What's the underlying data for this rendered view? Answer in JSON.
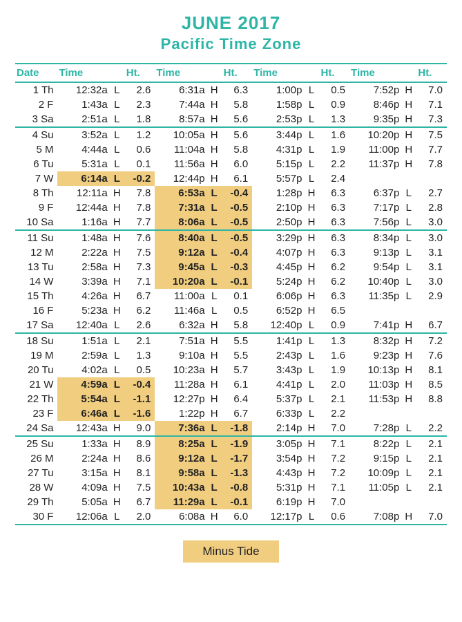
{
  "title": {
    "month": "JUNE 2017",
    "tz": "Pacific Time Zone"
  },
  "columns": [
    "Date",
    "Time",
    "",
    "Ht.",
    "Time",
    "",
    "Ht.",
    "Time",
    "",
    "Ht.",
    "Time",
    "",
    "Ht."
  ],
  "legend": "Minus Tide",
  "colors": {
    "accent": "#2db5a5",
    "highlight_bg": "#f1cd80",
    "text": "#222222",
    "background": "#ffffff"
  },
  "rows": [
    {
      "d": "1 Th",
      "c": [
        [
          "12:32a",
          "L",
          "2.6",
          0
        ],
        [
          "6:31a",
          "H",
          "6.3",
          0
        ],
        [
          "1:00p",
          "L",
          "0.5",
          0
        ],
        [
          "7:52p",
          "H",
          "7.0",
          0
        ]
      ]
    },
    {
      "d": "2 F",
      "c": [
        [
          "1:43a",
          "L",
          "2.3",
          0
        ],
        [
          "7:44a",
          "H",
          "5.8",
          0
        ],
        [
          "1:58p",
          "L",
          "0.9",
          0
        ],
        [
          "8:46p",
          "H",
          "7.1",
          0
        ]
      ]
    },
    {
      "d": "3 Sa",
      "sep": 1,
      "c": [
        [
          "2:51a",
          "L",
          "1.8",
          0
        ],
        [
          "8:57a",
          "H",
          "5.6",
          0
        ],
        [
          "2:53p",
          "L",
          "1.3",
          0
        ],
        [
          "9:35p",
          "H",
          "7.3",
          0
        ]
      ]
    },
    {
      "d": "4 Su",
      "c": [
        [
          "3:52a",
          "L",
          "1.2",
          0
        ],
        [
          "10:05a",
          "H",
          "5.6",
          0
        ],
        [
          "3:44p",
          "L",
          "1.6",
          0
        ],
        [
          "10:20p",
          "H",
          "7.5",
          0
        ]
      ]
    },
    {
      "d": "5 M",
      "c": [
        [
          "4:44a",
          "L",
          "0.6",
          0
        ],
        [
          "11:04a",
          "H",
          "5.8",
          0
        ],
        [
          "4:31p",
          "L",
          "1.9",
          0
        ],
        [
          "11:00p",
          "H",
          "7.7",
          0
        ]
      ]
    },
    {
      "d": "6 Tu",
      "c": [
        [
          "5:31a",
          "L",
          "0.1",
          0
        ],
        [
          "11:56a",
          "H",
          "6.0",
          0
        ],
        [
          "5:15p",
          "L",
          "2.2",
          0
        ],
        [
          "11:37p",
          "H",
          "7.8",
          0
        ]
      ]
    },
    {
      "d": "7 W",
      "c": [
        [
          "6:14a",
          "L",
          "-0.2",
          1
        ],
        [
          "12:44p",
          "H",
          "6.1",
          0
        ],
        [
          "5:57p",
          "L",
          "2.4",
          0
        ],
        [
          "",
          "",
          "",
          0
        ]
      ]
    },
    {
      "d": "8 Th",
      "c": [
        [
          "12:11a",
          "H",
          "7.8",
          0
        ],
        [
          "6:53a",
          "L",
          "-0.4",
          1
        ],
        [
          "1:28p",
          "H",
          "6.3",
          0
        ],
        [
          "6:37p",
          "L",
          "2.7",
          0
        ]
      ]
    },
    {
      "d": "9 F",
      "c": [
        [
          "12:44a",
          "H",
          "7.8",
          0
        ],
        [
          "7:31a",
          "L",
          "-0.5",
          1
        ],
        [
          "2:10p",
          "H",
          "6.3",
          0
        ],
        [
          "7:17p",
          "L",
          "2.8",
          0
        ]
      ]
    },
    {
      "d": "10 Sa",
      "sep": 1,
      "c": [
        [
          "1:16a",
          "H",
          "7.7",
          0
        ],
        [
          "8:06a",
          "L",
          "-0.5",
          1
        ],
        [
          "2:50p",
          "H",
          "6.3",
          0
        ],
        [
          "7:56p",
          "L",
          "3.0",
          0
        ]
      ]
    },
    {
      "d": "11 Su",
      "c": [
        [
          "1:48a",
          "H",
          "7.6",
          0
        ],
        [
          "8:40a",
          "L",
          "-0.5",
          1
        ],
        [
          "3:29p",
          "H",
          "6.3",
          0
        ],
        [
          "8:34p",
          "L",
          "3.0",
          0
        ]
      ]
    },
    {
      "d": "12 M",
      "c": [
        [
          "2:22a",
          "H",
          "7.5",
          0
        ],
        [
          "9:12a",
          "L",
          "-0.4",
          1
        ],
        [
          "4:07p",
          "H",
          "6.3",
          0
        ],
        [
          "9:13p",
          "L",
          "3.1",
          0
        ]
      ]
    },
    {
      "d": "13 Tu",
      "c": [
        [
          "2:58a",
          "H",
          "7.3",
          0
        ],
        [
          "9:45a",
          "L",
          "-0.3",
          1
        ],
        [
          "4:45p",
          "H",
          "6.2",
          0
        ],
        [
          "9:54p",
          "L",
          "3.1",
          0
        ]
      ]
    },
    {
      "d": "14 W",
      "c": [
        [
          "3:39a",
          "H",
          "7.1",
          0
        ],
        [
          "10:20a",
          "L",
          "-0.1",
          1
        ],
        [
          "5:24p",
          "H",
          "6.2",
          0
        ],
        [
          "10:40p",
          "L",
          "3.0",
          0
        ]
      ]
    },
    {
      "d": "15 Th",
      "c": [
        [
          "4:26a",
          "H",
          "6.7",
          0
        ],
        [
          "11:00a",
          "L",
          "0.1",
          0
        ],
        [
          "6:06p",
          "H",
          "6.3",
          0
        ],
        [
          "11:35p",
          "L",
          "2.9",
          0
        ]
      ]
    },
    {
      "d": "16 F",
      "c": [
        [
          "5:23a",
          "H",
          "6.2",
          0
        ],
        [
          "11:46a",
          "L",
          "0.5",
          0
        ],
        [
          "6:52p",
          "H",
          "6.5",
          0
        ],
        [
          "",
          "",
          "",
          0
        ]
      ]
    },
    {
      "d": "17 Sa",
      "sep": 1,
      "c": [
        [
          "12:40a",
          "L",
          "2.6",
          0
        ],
        [
          "6:32a",
          "H",
          "5.8",
          0
        ],
        [
          "12:40p",
          "L",
          "0.9",
          0
        ],
        [
          "7:41p",
          "H",
          "6.7",
          0
        ]
      ]
    },
    {
      "d": "18 Su",
      "c": [
        [
          "1:51a",
          "L",
          "2.1",
          0
        ],
        [
          "7:51a",
          "H",
          "5.5",
          0
        ],
        [
          "1:41p",
          "L",
          "1.3",
          0
        ],
        [
          "8:32p",
          "H",
          "7.2",
          0
        ]
      ]
    },
    {
      "d": "19 M",
      "c": [
        [
          "2:59a",
          "L",
          "1.3",
          0
        ],
        [
          "9:10a",
          "H",
          "5.5",
          0
        ],
        [
          "2:43p",
          "L",
          "1.6",
          0
        ],
        [
          "9:23p",
          "H",
          "7.6",
          0
        ]
      ]
    },
    {
      "d": "20 Tu",
      "c": [
        [
          "4:02a",
          "L",
          "0.5",
          0
        ],
        [
          "10:23a",
          "H",
          "5.7",
          0
        ],
        [
          "3:43p",
          "L",
          "1.9",
          0
        ],
        [
          "10:13p",
          "H",
          "8.1",
          0
        ]
      ]
    },
    {
      "d": "21 W",
      "c": [
        [
          "4:59a",
          "L",
          "-0.4",
          1
        ],
        [
          "11:28a",
          "H",
          "6.1",
          0
        ],
        [
          "4:41p",
          "L",
          "2.0",
          0
        ],
        [
          "11:03p",
          "H",
          "8.5",
          0
        ]
      ]
    },
    {
      "d": "22 Th",
      "c": [
        [
          "5:54a",
          "L",
          "-1.1",
          1
        ],
        [
          "12:27p",
          "H",
          "6.4",
          0
        ],
        [
          "5:37p",
          "L",
          "2.1",
          0
        ],
        [
          "11:53p",
          "H",
          "8.8",
          0
        ]
      ]
    },
    {
      "d": "23 F",
      "c": [
        [
          "6:46a",
          "L",
          "-1.6",
          1
        ],
        [
          "1:22p",
          "H",
          "6.7",
          0
        ],
        [
          "6:33p",
          "L",
          "2.2",
          0
        ],
        [
          "",
          "",
          "",
          0
        ]
      ]
    },
    {
      "d": "24 Sa",
      "sep": 1,
      "c": [
        [
          "12:43a",
          "H",
          "9.0",
          0
        ],
        [
          "7:36a",
          "L",
          "-1.8",
          1
        ],
        [
          "2:14p",
          "H",
          "7.0",
          0
        ],
        [
          "7:28p",
          "L",
          "2.2",
          0
        ]
      ]
    },
    {
      "d": "25 Su",
      "c": [
        [
          "1:33a",
          "H",
          "8.9",
          0
        ],
        [
          "8:25a",
          "L",
          "-1.9",
          1
        ],
        [
          "3:05p",
          "H",
          "7.1",
          0
        ],
        [
          "8:22p",
          "L",
          "2.1",
          0
        ]
      ]
    },
    {
      "d": "26 M",
      "c": [
        [
          "2:24a",
          "H",
          "8.6",
          0
        ],
        [
          "9:12a",
          "L",
          "-1.7",
          1
        ],
        [
          "3:54p",
          "H",
          "7.2",
          0
        ],
        [
          "9:15p",
          "L",
          "2.1",
          0
        ]
      ]
    },
    {
      "d": "27 Tu",
      "c": [
        [
          "3:15a",
          "H",
          "8.1",
          0
        ],
        [
          "9:58a",
          "L",
          "-1.3",
          1
        ],
        [
          "4:43p",
          "H",
          "7.2",
          0
        ],
        [
          "10:09p",
          "L",
          "2.1",
          0
        ]
      ]
    },
    {
      "d": "28 W",
      "c": [
        [
          "4:09a",
          "H",
          "7.5",
          0
        ],
        [
          "10:43a",
          "L",
          "-0.8",
          1
        ],
        [
          "5:31p",
          "H",
          "7.1",
          0
        ],
        [
          "11:05p",
          "L",
          "2.1",
          0
        ]
      ]
    },
    {
      "d": "29 Th",
      "c": [
        [
          "5:05a",
          "H",
          "6.7",
          0
        ],
        [
          "11:29a",
          "L",
          "-0.1",
          1
        ],
        [
          "6:19p",
          "H",
          "7.0",
          0
        ],
        [
          "",
          "",
          "",
          0
        ]
      ]
    },
    {
      "d": "30 F",
      "last": 1,
      "c": [
        [
          "12:06a",
          "L",
          "2.0",
          0
        ],
        [
          "6:08a",
          "H",
          "6.0",
          0
        ],
        [
          "12:17p",
          "L",
          "0.6",
          0
        ],
        [
          "7:08p",
          "H",
          "7.0",
          0
        ]
      ]
    }
  ]
}
